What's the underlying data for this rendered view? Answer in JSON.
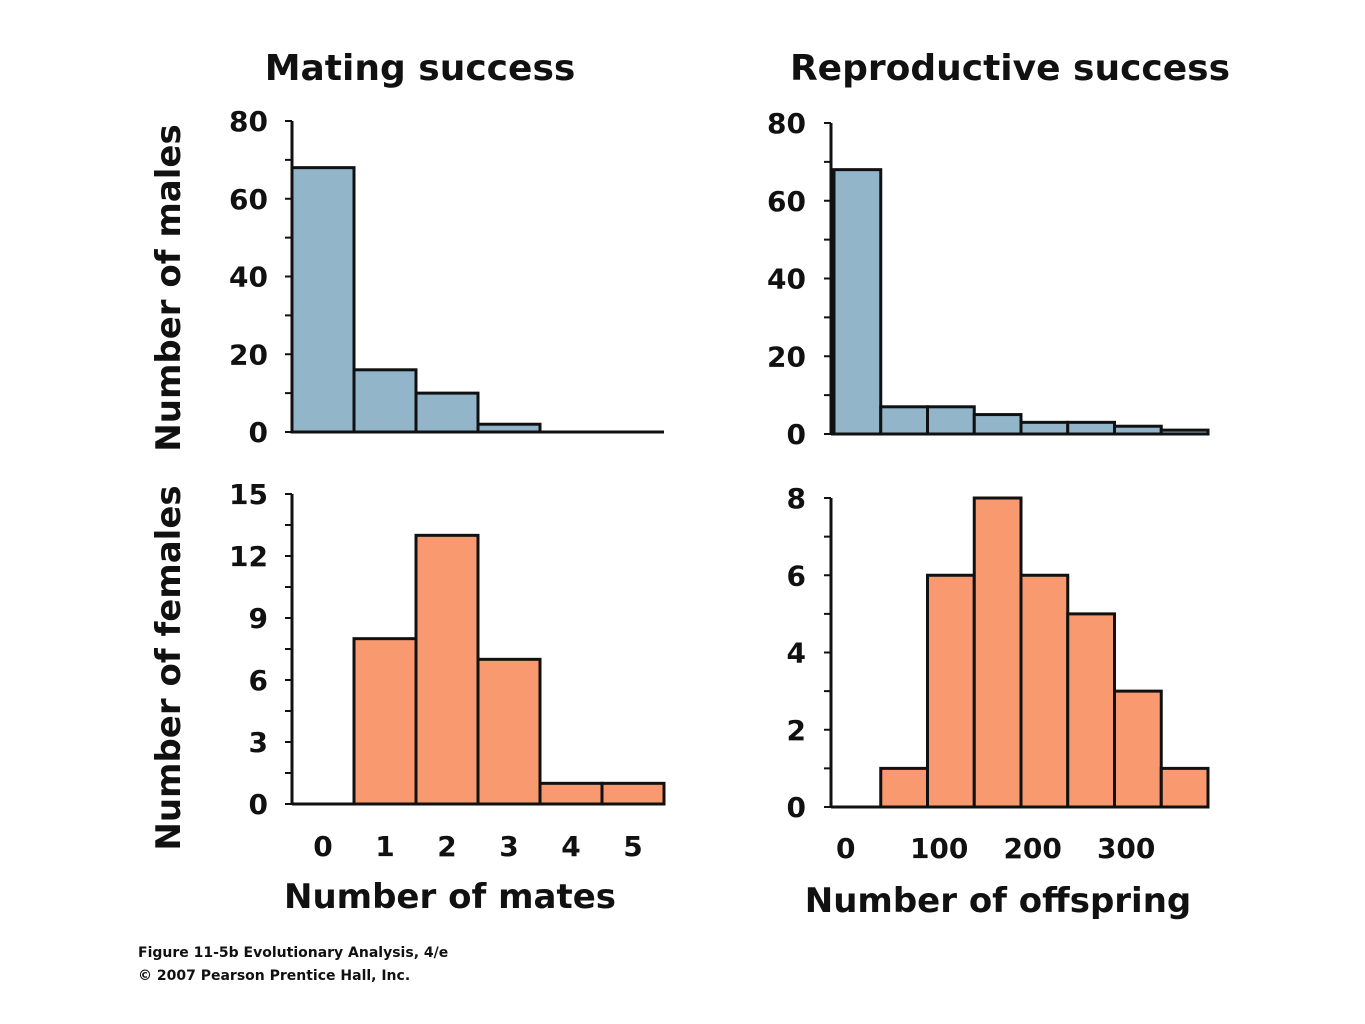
{
  "colors": {
    "males": "#93b5ca",
    "females": "#f9996f",
    "stroke": "#111111"
  },
  "titles": {
    "left": "Mating success",
    "right": "Reproductive success"
  },
  "ylabels": {
    "top": "Number of males",
    "bottom": "Number of females"
  },
  "xlabels": {
    "left": "Number of mates",
    "right": "Number of offspring"
  },
  "caption": {
    "line1": "Figure 11-5b  Evolutionary Analysis, 4/e",
    "line2": "© 2007 Pearson Prentice Hall, Inc."
  },
  "chart_data": [
    {
      "type": "bar",
      "panel": "males-mates",
      "categories": [
        "0",
        "1",
        "2",
        "3",
        "4",
        "5"
      ],
      "values": [
        68,
        16,
        10,
        2,
        0,
        0
      ],
      "ylim": [
        0,
        80
      ],
      "yticks": [
        0,
        20,
        40,
        60,
        80
      ],
      "xticks": [],
      "color": "#93b5ca"
    },
    {
      "type": "bar",
      "panel": "males-offspring",
      "bins": [
        [
          0,
          50
        ],
        [
          50,
          100
        ],
        [
          100,
          150
        ],
        [
          150,
          200
        ],
        [
          200,
          250
        ],
        [
          250,
          300
        ],
        [
          300,
          350
        ],
        [
          350,
          400
        ]
      ],
      "values": [
        68,
        7,
        7,
        5,
        3,
        3,
        2,
        1
      ],
      "ylim": [
        0,
        80
      ],
      "yticks": [
        0,
        20,
        40,
        60,
        80
      ],
      "xticks": [],
      "color": "#93b5ca"
    },
    {
      "type": "bar",
      "panel": "females-mates",
      "categories": [
        "0",
        "1",
        "2",
        "3",
        "4",
        "5"
      ],
      "values": [
        0,
        8,
        13,
        7,
        1,
        1
      ],
      "ylim": [
        0,
        15
      ],
      "yticks": [
        0,
        3,
        6,
        9,
        12,
        15
      ],
      "xticks": [
        "0",
        "1",
        "2",
        "3",
        "4",
        "5"
      ],
      "color": "#f9996f"
    },
    {
      "type": "bar",
      "panel": "females-offspring",
      "bins": [
        [
          0,
          50
        ],
        [
          50,
          100
        ],
        [
          100,
          150
        ],
        [
          150,
          200
        ],
        [
          200,
          250
        ],
        [
          250,
          300
        ],
        [
          300,
          350
        ],
        [
          350,
          400
        ]
      ],
      "values": [
        0,
        1,
        6,
        8,
        6,
        5,
        3,
        1
      ],
      "ylim": [
        0,
        8
      ],
      "yticks": [
        0,
        2,
        4,
        6,
        8
      ],
      "xticks": [
        "0",
        "100",
        "200",
        "300"
      ],
      "xtick_values": [
        0,
        100,
        200,
        300
      ],
      "color": "#f9996f"
    }
  ]
}
